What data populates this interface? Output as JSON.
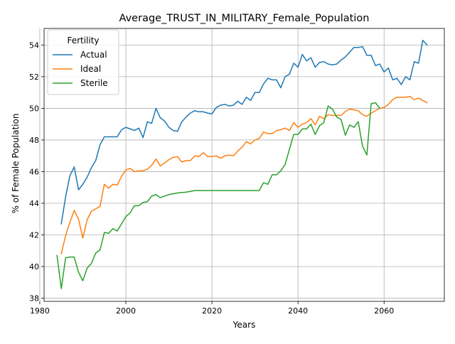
{
  "chart_data": {
    "type": "line",
    "title": "Average_TRUST_IN_MILITARY_Female_Population",
    "xlabel": "Years",
    "ylabel": "% of Female Population",
    "xlim": [
      1981,
      2074
    ],
    "ylim": [
      37.8,
      55.05
    ],
    "xticks": [
      1980,
      2000,
      2020,
      2040,
      2060
    ],
    "yticks": [
      38,
      40,
      42,
      44,
      46,
      48,
      50,
      52,
      54
    ],
    "grid": true,
    "legend": {
      "title": "Fertility",
      "placement": "top-left"
    },
    "series": [
      {
        "name": "Actual",
        "color": "#1f77b4",
        "x": [
          1985,
          1986,
          1987,
          1988,
          1989,
          1990,
          1991,
          1992,
          1993,
          1994,
          1995,
          1996,
          1997,
          1998,
          1999,
          2000,
          2001,
          2002,
          2003,
          2004,
          2005,
          2006,
          2007,
          2008,
          2009,
          2010,
          2011,
          2012,
          2013,
          2014,
          2015,
          2016,
          2017,
          2018,
          2019,
          2020,
          2021,
          2022,
          2023,
          2024,
          2025,
          2026,
          2027,
          2028,
          2029,
          2030,
          2031,
          2032,
          2033,
          2034,
          2035,
          2036,
          2037,
          2038,
          2039,
          2040,
          2041,
          2042,
          2043,
          2044,
          2045,
          2046,
          2047,
          2048,
          2049,
          2050,
          2051,
          2052,
          2053,
          2054,
          2055,
          2056,
          2057,
          2058,
          2059,
          2060,
          2061,
          2062,
          2063,
          2064,
          2065,
          2066,
          2067,
          2068,
          2069,
          2070
        ],
        "values": [
          42.7,
          44.4,
          45.75,
          46.3,
          44.85,
          45.2,
          45.65,
          46.25,
          46.7,
          47.7,
          48.2,
          48.2,
          48.2,
          48.2,
          48.65,
          48.8,
          48.7,
          48.6,
          48.75,
          48.15,
          49.15,
          49.05,
          50.0,
          49.4,
          49.2,
          48.8,
          48.6,
          48.55,
          49.15,
          49.45,
          49.7,
          49.85,
          49.78,
          49.78,
          49.7,
          49.65,
          50.05,
          50.2,
          50.25,
          50.15,
          50.2,
          50.45,
          50.25,
          50.7,
          50.5,
          51.0,
          51.0,
          51.55,
          51.9,
          51.8,
          51.8,
          51.3,
          52.0,
          52.15,
          52.85,
          52.6,
          53.4,
          53.0,
          53.2,
          52.6,
          52.9,
          52.95,
          52.8,
          52.75,
          52.8,
          53.05,
          53.25,
          53.55,
          53.85,
          53.85,
          53.9,
          53.35,
          53.35,
          52.7,
          52.8,
          52.3,
          52.55,
          51.8,
          51.9,
          51.5,
          52.0,
          51.8,
          52.95,
          52.85,
          54.3,
          54.0
        ]
      },
      {
        "name": "Ideal",
        "color": "#ff7f0e",
        "x": [
          1985,
          1986,
          1987,
          1988,
          1989,
          1990,
          1991,
          1992,
          1993,
          1994,
          1995,
          1996,
          1997,
          1998,
          1999,
          2000,
          2001,
          2002,
          2003,
          2004,
          2005,
          2006,
          2007,
          2008,
          2009,
          2010,
          2011,
          2012,
          2013,
          2014,
          2015,
          2016,
          2017,
          2018,
          2019,
          2020,
          2021,
          2022,
          2023,
          2024,
          2025,
          2026,
          2027,
          2028,
          2029,
          2030,
          2031,
          2032,
          2033,
          2034,
          2035,
          2036,
          2037,
          2038,
          2039,
          2040,
          2041,
          2042,
          2043,
          2044,
          2045,
          2046,
          2047,
          2048,
          2049,
          2050,
          2051,
          2052,
          2053,
          2054,
          2055,
          2056,
          2057,
          2058,
          2059,
          2060,
          2061,
          2062,
          2063,
          2064,
          2065,
          2066,
          2067,
          2068,
          2069,
          2070
        ],
        "values": [
          40.8,
          41.95,
          42.8,
          43.55,
          43.0,
          41.8,
          42.95,
          43.5,
          43.65,
          43.8,
          45.2,
          44.95,
          45.2,
          45.15,
          45.7,
          46.1,
          46.2,
          46.0,
          46.05,
          46.05,
          46.15,
          46.4,
          46.8,
          46.35,
          46.55,
          46.75,
          46.9,
          46.95,
          46.6,
          46.7,
          46.7,
          47.0,
          46.95,
          47.2,
          46.95,
          46.95,
          47.0,
          46.85,
          47.0,
          47.05,
          47.0,
          47.3,
          47.55,
          47.9,
          47.75,
          48.0,
          48.1,
          48.5,
          48.4,
          48.4,
          48.6,
          48.65,
          48.75,
          48.6,
          49.1,
          48.8,
          49.0,
          49.1,
          49.35,
          48.95,
          49.5,
          49.35,
          49.6,
          49.55,
          49.55,
          49.55,
          49.8,
          49.95,
          49.9,
          49.85,
          49.6,
          49.5,
          49.7,
          49.85,
          50.0,
          50.05,
          50.25,
          50.55,
          50.7,
          50.7,
          50.7,
          50.75,
          50.55,
          50.65,
          50.5,
          50.35
        ]
      },
      {
        "name": "Sterile",
        "color": "#2ca02c",
        "x": [
          1984,
          1985,
          1986,
          1987,
          1988,
          1989,
          1990,
          1991,
          1992,
          1993,
          1994,
          1995,
          1996,
          1997,
          1998,
          1999,
          2000,
          2001,
          2002,
          2003,
          2004,
          2005,
          2006,
          2007,
          2008,
          2009,
          2010,
          2011,
          2012,
          2013,
          2014,
          2015,
          2016,
          2017,
          2018,
          2019,
          2020,
          2021,
          2022,
          2023,
          2024,
          2025,
          2026,
          2027,
          2028,
          2029,
          2030,
          2031,
          2032,
          2033,
          2034,
          2035,
          2036,
          2037,
          2038,
          2039,
          2040,
          2041,
          2042,
          2043,
          2044,
          2045,
          2046,
          2047,
          2048,
          2049,
          2050,
          2051,
          2052,
          2053,
          2054,
          2055,
          2056,
          2057,
          2058,
          2059
        ],
        "values": [
          40.7,
          38.6,
          40.55,
          40.6,
          40.6,
          39.65,
          39.1,
          39.9,
          40.2,
          40.85,
          41.05,
          42.15,
          42.1,
          42.4,
          42.25,
          42.7,
          43.15,
          43.4,
          43.85,
          43.85,
          44.05,
          44.1,
          44.45,
          44.55,
          44.35,
          44.45,
          44.55,
          44.6,
          44.65,
          44.68,
          44.7,
          44.75,
          44.8,
          44.8,
          44.8,
          44.8,
          44.8,
          44.8,
          44.8,
          44.8,
          44.8,
          44.8,
          44.8,
          44.8,
          44.8,
          44.8,
          44.8,
          44.8,
          45.3,
          45.2,
          45.8,
          45.8,
          46.05,
          46.45,
          47.4,
          48.35,
          48.35,
          48.7,
          48.7,
          49.0,
          48.35,
          48.9,
          49.1,
          50.15,
          49.95,
          49.45,
          49.3,
          48.3,
          48.95,
          48.8,
          49.15,
          47.6,
          47.05,
          50.3,
          50.35,
          50.0
        ]
      }
    ]
  }
}
